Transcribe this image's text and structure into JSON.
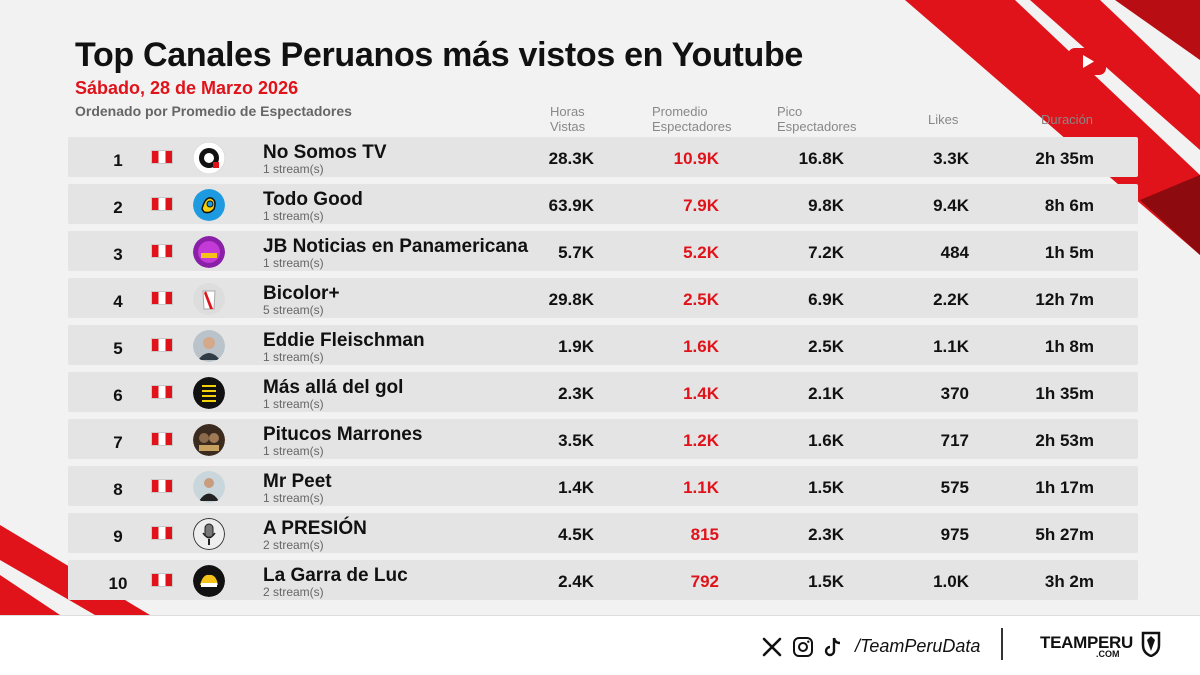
{
  "header": {
    "title": "Top Canales Peruanos más vistos en Youtube",
    "date": "Sábado, 28 de Marzo 2026",
    "sort_note": "Ordenado por Promedio de Espectadores"
  },
  "columns": {
    "hours_line1": "Horas",
    "hours_line2": "Vistas",
    "avg_line1": "Promedio",
    "avg_line2": "Espectadores",
    "peak_line1": "Pico",
    "peak_line2": "Espectadores",
    "likes": "Likes",
    "duration": "Duración"
  },
  "rows": [
    {
      "rank": "1",
      "name": "No Somos TV",
      "streams": "1 stream(s)",
      "hours": "28.3K",
      "avg": "10.9K",
      "peak": "16.8K",
      "likes": "3.3K",
      "duration": "2h 35m",
      "avatar": "nosomostv-logo"
    },
    {
      "rank": "2",
      "name": "Todo Good",
      "streams": "1 stream(s)",
      "hours": "63.9K",
      "avg": "7.9K",
      "peak": "9.8K",
      "likes": "9.4K",
      "duration": "8h 6m",
      "avatar": "todogood-logo"
    },
    {
      "rank": "3",
      "name": "JB Noticias en Panamericana",
      "streams": "1 stream(s)",
      "hours": "5.7K",
      "avg": "5.2K",
      "peak": "7.2K",
      "likes": "484",
      "duration": "1h 5m",
      "avatar": "jbnoticias-logo"
    },
    {
      "rank": "4",
      "name": "Bicolor+",
      "streams": "5 stream(s)",
      "hours": "29.8K",
      "avg": "2.5K",
      "peak": "6.9K",
      "likes": "2.2K",
      "duration": "12h 7m",
      "avatar": "bicolor-logo"
    },
    {
      "rank": "5",
      "name": "Eddie Fleischman",
      "streams": "1 stream(s)",
      "hours": "1.9K",
      "avg": "1.6K",
      "peak": "2.5K",
      "likes": "1.1K",
      "duration": "1h 8m",
      "avatar": "person-photo"
    },
    {
      "rank": "6",
      "name": "Más allá del gol",
      "streams": "1 stream(s)",
      "hours": "2.3K",
      "avg": "1.4K",
      "peak": "2.1K",
      "likes": "370",
      "duration": "1h 35m",
      "avatar": "masalladelgol-logo"
    },
    {
      "rank": "7",
      "name": "Pitucos Marrones",
      "streams": "1 stream(s)",
      "hours": "3.5K",
      "avg": "1.2K",
      "peak": "1.6K",
      "likes": "717",
      "duration": "2h 53m",
      "avatar": "pitucosmarrones-logo"
    },
    {
      "rank": "8",
      "name": "Mr Peet",
      "streams": "1 stream(s)",
      "hours": "1.4K",
      "avg": "1.1K",
      "peak": "1.5K",
      "likes": "575",
      "duration": "1h 17m",
      "avatar": "person-photo"
    },
    {
      "rank": "9",
      "name": "A PRESIÓN",
      "streams": "2 stream(s)",
      "hours": "4.5K",
      "avg": "815",
      "peak": "2.3K",
      "likes": "975",
      "duration": "5h 27m",
      "avatar": "microphone-logo"
    },
    {
      "rank": "10",
      "name": "La Garra de Luc",
      "streams": "2 stream(s)",
      "hours": "2.4K",
      "avg": "792",
      "peak": "1.5K",
      "likes": "1.0K",
      "duration": "3h 2m",
      "avatar": "lagarradeluc-logo"
    }
  ],
  "footer": {
    "handle": "/TeamPeruData",
    "brand": "TEAMPERU",
    "brand_suffix": ".COM",
    "icons": [
      "x-icon",
      "instagram-icon",
      "tiktok-icon"
    ]
  },
  "colors": {
    "accent": "#e0121a",
    "row_bg": "#e4e4e4",
    "background": "#f2f2f2"
  }
}
